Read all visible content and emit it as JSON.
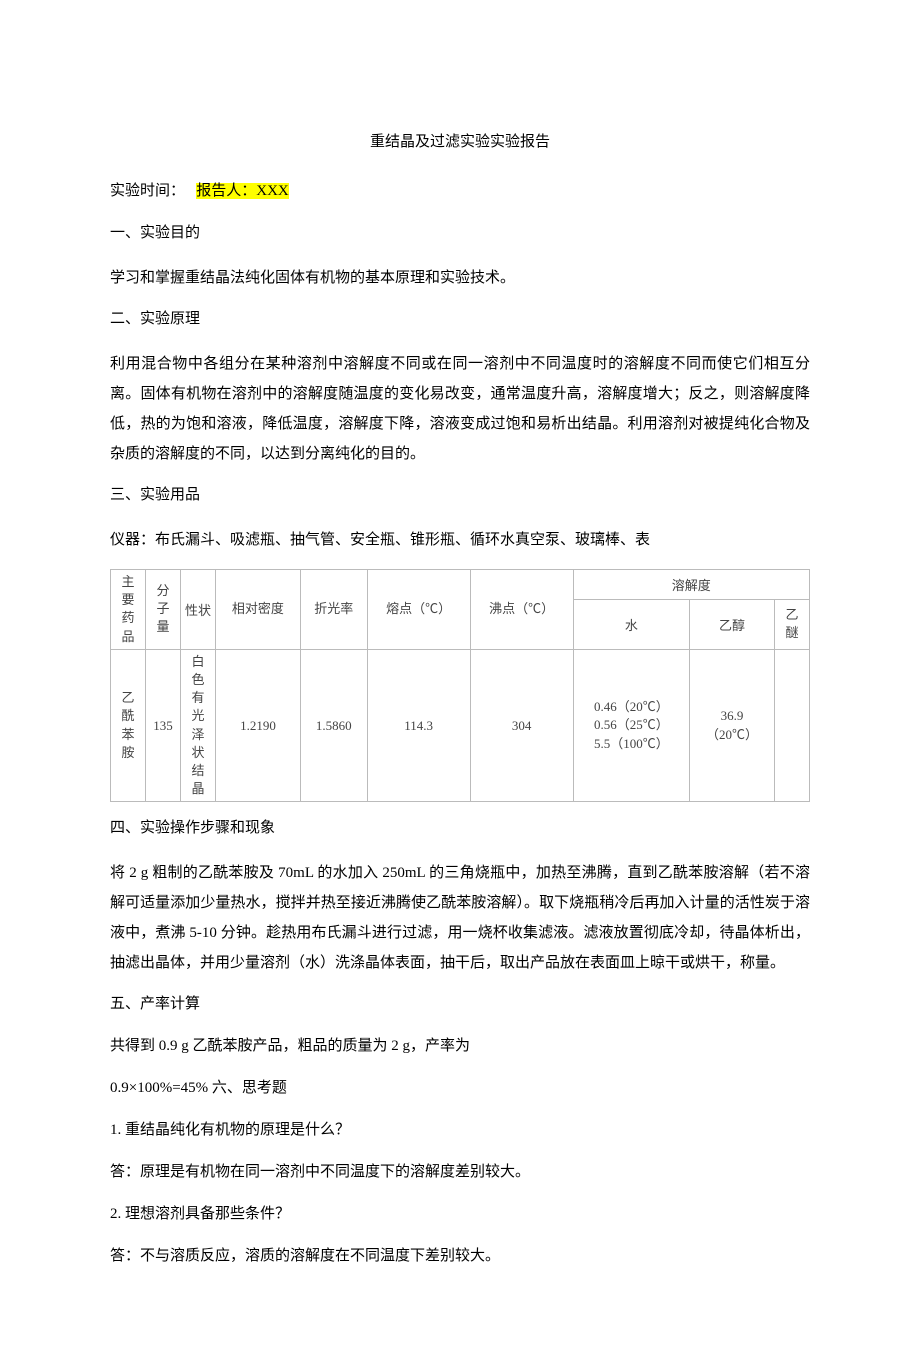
{
  "title": "重结晶及过滤实验实验报告",
  "meta": {
    "time_label": "实验时间：",
    "reporter_label": "报告人：XXX"
  },
  "s1": {
    "heading": "一、实验目的",
    "body": "学习和掌握重结晶法纯化固体有机物的基本原理和实验技术。"
  },
  "s2": {
    "heading": "二、实验原理",
    "body": "利用混合物中各组分在某种溶剂中溶解度不同或在同一溶剂中不同温度时的溶解度不同而使它们相互分离。固体有机物在溶剂中的溶解度随温度的变化易改变，通常温度升高，溶解度增大；反之，则溶解度降低，热的为饱和溶液，降低温度，溶解度下降，溶液变成过饱和易析出结晶。利用溶剂对被提纯化合物及杂质的溶解度的不同，以达到分离纯化的目的。"
  },
  "s3": {
    "heading": "三、实验用品",
    "body": "仪器：布氏漏斗、吸滤瓶、抽气管、安全瓶、锥形瓶、循环水真空泵、玻璃棒、表"
  },
  "table": {
    "header": {
      "c1": "主要药品",
      "c2": "分子量",
      "c3": "性状",
      "c4": "相对密度",
      "c5": "折光率",
      "c6": "熔点（℃）",
      "c7": "沸点（℃）",
      "c8": "溶解度",
      "c8a": "水",
      "c8b": "乙醇",
      "c8c": "乙醚"
    },
    "row": {
      "c1": "乙酰苯胺",
      "c2": "135",
      "c3": "白色有光泽状结晶",
      "c4": "1.2190",
      "c5": "1.5860",
      "c6": "114.3",
      "c7": "304",
      "c8a_l1": "0.46（20℃）",
      "c8a_l2": "0.56（25℃）",
      "c8a_l3": "5.5（100℃）",
      "c8b_l1": "36.9",
      "c8b_l2": "（20℃）",
      "c8c": ""
    }
  },
  "s4": {
    "heading": "四、实验操作步骤和现象",
    "body": "将 2 g 粗制的乙酰苯胺及 70mL 的水加入 250mL 的三角烧瓶中，加热至沸腾，直到乙酰苯胺溶解（若不溶解可适量添加少量热水，搅拌并热至接近沸腾使乙酰苯胺溶解）。取下烧瓶稍冷后再加入计量的活性炭于溶液中，煮沸 5-10 分钟。趁热用布氏漏斗进行过滤，用一烧杯收集滤液。滤液放置彻底冷却，待晶体析出，抽滤出晶体，并用少量溶剂（水）洗涤晶体表面，抽干后，取出产品放在表面皿上晾干或烘干，称量。"
  },
  "s5": {
    "heading": "五、产率计算",
    "l1": "共得到 0.9 g 乙酰苯胺产品，粗品的质量为 2 g，产率为",
    "l2": "0.9×100%=45%  六、思考题"
  },
  "q1": {
    "q": "1. 重结晶纯化有机物的原理是什么？",
    "a": "答：原理是有机物在同一溶剂中不同温度下的溶解度差别较大。"
  },
  "q2": {
    "q": "2. 理想溶剂具备那些条件？",
    "a": "答：不与溶质反应，溶质的溶解度在不同温度下差别较大。"
  }
}
